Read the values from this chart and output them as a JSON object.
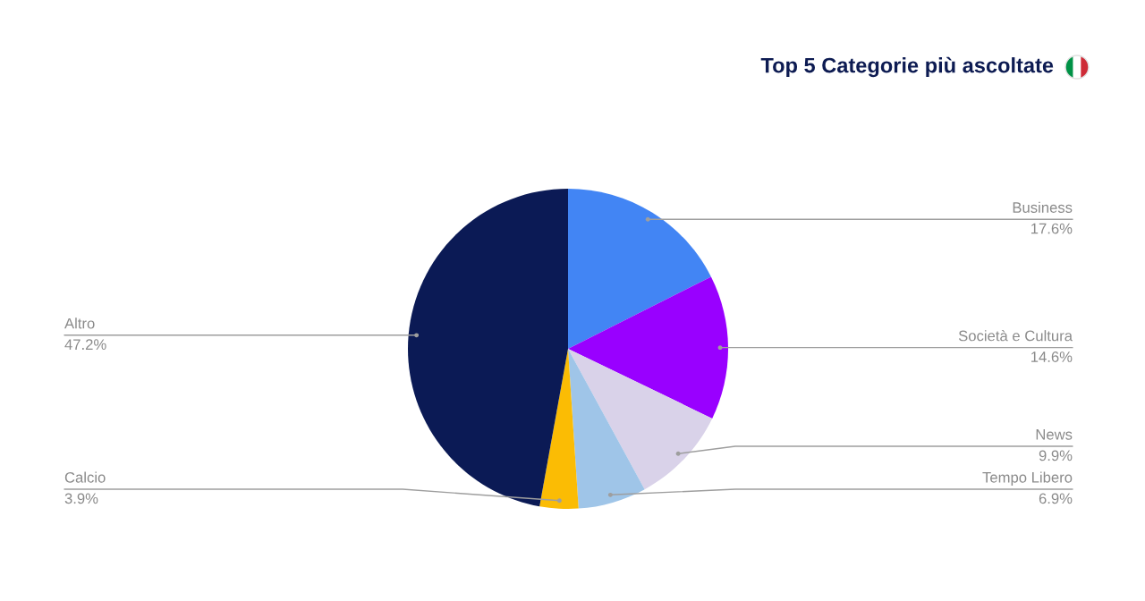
{
  "chart_data": {
    "type": "pie",
    "title": "Top 5 Categorie più ascoltate",
    "categories": [
      "Business",
      "Società e Cultura",
      "News",
      "Tempo Libero",
      "Calcio",
      "Altro"
    ],
    "values": [
      17.6,
      14.6,
      9.9,
      6.9,
      3.9,
      47.2
    ],
    "colors": [
      "#4285f4",
      "#9900ff",
      "#d9d2e9",
      "#9fc5e8",
      "#fbbc04",
      "#0b1a55"
    ],
    "value_labels": [
      "17.6%",
      "14.6%",
      "9.9%",
      "6.9%",
      "3.9%",
      "47.2%"
    ]
  }
}
